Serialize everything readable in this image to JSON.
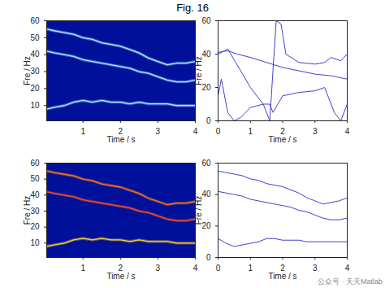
{
  "title": "Fig. 16",
  "watermark": "公众号 · 天天Matlab",
  "chart_data": [
    {
      "type": "line",
      "color": "#00109a",
      "xlabel": "Time / s",
      "ylabel": "Fre / Hz",
      "xlim": [
        0.03,
        4
      ],
      "ylim": [
        1,
        60
      ],
      "xticks": [
        1,
        2,
        3,
        4
      ],
      "yticks": [
        10,
        20,
        30,
        40,
        50,
        60
      ],
      "series": [
        {
          "color": "#a8ecff",
          "x": [
            0.05,
            0.25,
            0.5,
            0.75,
            1,
            1.25,
            1.5,
            1.75,
            2,
            2.25,
            2.5,
            2.75,
            3,
            3.25,
            3.5,
            3.75,
            4
          ],
          "values": [
            55,
            54,
            53,
            52,
            50,
            49,
            47,
            46,
            45,
            43,
            41,
            38,
            36,
            34,
            35,
            35,
            36
          ]
        },
        {
          "color": "#a8ecff",
          "x": [
            0.05,
            0.25,
            0.5,
            0.75,
            1,
            1.25,
            1.5,
            1.75,
            2,
            2.25,
            2.5,
            2.75,
            3,
            3.25,
            3.5,
            3.75,
            4
          ],
          "values": [
            42,
            41,
            40,
            39,
            37,
            36,
            35,
            34,
            33,
            32,
            30,
            29,
            27,
            25,
            24,
            24,
            25
          ]
        },
        {
          "color": "#a8ecff",
          "x": [
            0.05,
            0.25,
            0.5,
            0.75,
            1,
            1.25,
            1.5,
            1.75,
            2,
            2.25,
            2.5,
            2.75,
            3,
            3.25,
            3.5,
            3.75,
            4
          ],
          "values": [
            8,
            9,
            10,
            12,
            13,
            12,
            13,
            12,
            12,
            11,
            12,
            11,
            11,
            11,
            10,
            10,
            10
          ]
        }
      ]
    },
    {
      "type": "line",
      "xlabel": "Time / s",
      "ylabel": "Fre / Hz",
      "xlim": [
        0,
        4
      ],
      "ylim": [
        0,
        60
      ],
      "xticks": [
        0,
        1,
        2,
        3,
        4
      ],
      "yticks": [
        0,
        20,
        40,
        60
      ],
      "series": [
        {
          "color": "#4040d0",
          "x": [
            0,
            0.3,
            0.6,
            1,
            1.5,
            2,
            2.5,
            3,
            3.5,
            4
          ],
          "values": [
            41,
            42,
            40,
            38,
            35,
            32,
            30,
            28,
            27,
            25
          ]
        },
        {
          "color": "#4040d0",
          "x": [
            0,
            0.3,
            0.7,
            1,
            1.4,
            1.6,
            1.8,
            1.95,
            2.1,
            2.5,
            3,
            3.3,
            3.5,
            3.8,
            4
          ],
          "values": [
            40,
            43,
            30,
            20,
            10,
            0,
            60,
            58,
            40,
            35,
            34,
            35,
            38,
            36,
            40
          ]
        },
        {
          "color": "#4040d0",
          "x": [
            0,
            0.1,
            0.3,
            0.5,
            0.7,
            1,
            1.4,
            1.6,
            1.7,
            2,
            2.5,
            3,
            3.3,
            3.5,
            3.6,
            3.8,
            4
          ],
          "values": [
            15,
            25,
            5,
            0,
            2,
            8,
            10,
            10,
            5,
            15,
            17,
            18,
            20,
            10,
            5,
            0,
            10
          ]
        }
      ]
    },
    {
      "type": "line",
      "color": "#00109a",
      "xlabel": "Time / s",
      "ylabel": "Fre / Hz",
      "xlim": [
        0.03,
        4
      ],
      "ylim": [
        1,
        60
      ],
      "xticks": [
        1,
        2,
        3,
        4
      ],
      "yticks": [
        10,
        20,
        30,
        40,
        50,
        60
      ],
      "series": [
        {
          "color": "#ff7a10",
          "x": [
            0.05,
            0.25,
            0.5,
            0.75,
            1,
            1.25,
            1.5,
            1.75,
            2,
            2.25,
            2.5,
            2.75,
            3,
            3.25,
            3.5,
            3.75,
            4
          ],
          "values": [
            55,
            54,
            53,
            52,
            50,
            49,
            47,
            46,
            45,
            43,
            41,
            38,
            36,
            34,
            35,
            35,
            36
          ]
        },
        {
          "color": "#ff5020",
          "x": [
            0.05,
            0.25,
            0.5,
            0.75,
            1,
            1.25,
            1.5,
            1.75,
            2,
            2.25,
            2.5,
            2.75,
            3,
            3.25,
            3.5,
            3.75,
            4
          ],
          "values": [
            42,
            41,
            40,
            39,
            37,
            36,
            35,
            34,
            33,
            32,
            30,
            29,
            27,
            25,
            24,
            24,
            25
          ]
        },
        {
          "color": "#ffd020",
          "x": [
            0.05,
            0.25,
            0.5,
            0.75,
            1,
            1.25,
            1.5,
            1.75,
            2,
            2.25,
            2.5,
            2.75,
            3,
            3.25,
            3.5,
            3.75,
            4
          ],
          "values": [
            8,
            9,
            10,
            12,
            13,
            12,
            13,
            12,
            12,
            11,
            12,
            11,
            11,
            11,
            10,
            10,
            10
          ]
        }
      ]
    },
    {
      "type": "line",
      "xlabel": "Time / s",
      "ylabel": "Fre / Hz",
      "xlim": [
        0,
        4
      ],
      "ylim": [
        0,
        60
      ],
      "xticks": [
        0,
        1,
        2,
        3,
        4
      ],
      "yticks": [
        0,
        20,
        40,
        60
      ],
      "series": [
        {
          "color": "#4040d0",
          "x": [
            0,
            0.25,
            0.5,
            0.75,
            1,
            1.25,
            1.5,
            1.75,
            2,
            2.25,
            2.5,
            2.75,
            3,
            3.25,
            3.5,
            3.75,
            4
          ],
          "values": [
            55,
            54,
            53,
            52,
            50,
            49,
            47,
            46,
            45,
            43,
            41,
            38,
            36,
            34,
            35,
            36,
            38
          ]
        },
        {
          "color": "#4040d0",
          "x": [
            0,
            0.25,
            0.5,
            0.75,
            1,
            1.25,
            1.5,
            1.75,
            2,
            2.25,
            2.5,
            2.75,
            3,
            3.25,
            3.5,
            3.75,
            4
          ],
          "values": [
            42,
            41,
            40,
            39,
            37,
            36,
            35,
            34,
            33,
            32,
            30,
            29,
            27,
            25,
            24,
            24,
            25
          ]
        },
        {
          "color": "#4040d0",
          "x": [
            0,
            0.25,
            0.5,
            0.75,
            1,
            1.25,
            1.5,
            1.75,
            2,
            2.25,
            2.5,
            2.75,
            3,
            3.25,
            3.5,
            3.75,
            4
          ],
          "values": [
            12,
            9,
            7,
            8,
            9,
            10,
            12,
            12,
            11,
            11,
            11,
            10,
            10,
            10,
            10,
            10,
            10
          ]
        }
      ]
    }
  ]
}
